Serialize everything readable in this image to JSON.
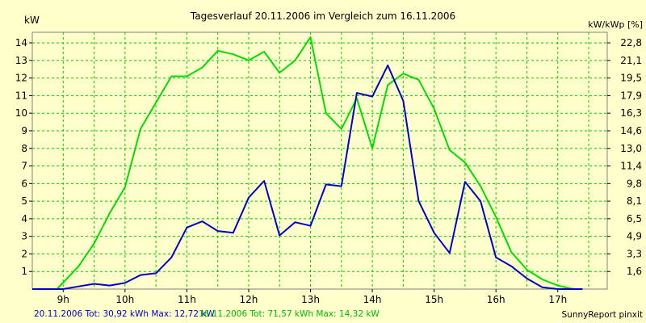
{
  "chart_data": {
    "type": "line",
    "title": "Tagesverlauf 20.11.2006 im Vergleich zum 16.11.2006",
    "ylabel_left": "kW",
    "ylabel_right": "kW/kWp [%]",
    "ylim": [
      0,
      14.6
    ],
    "xlim_hours": [
      8.5,
      17.8
    ],
    "yticks_left": [
      1,
      2,
      3,
      4,
      5,
      6,
      7,
      8,
      9,
      10,
      11,
      12,
      13,
      14
    ],
    "yticks_right": [
      "1,6",
      "3,3",
      "4,9",
      "6,5",
      "8,1",
      "9,8",
      "11,4",
      "13,0",
      "14,6",
      "16,3",
      "17,9",
      "19,5",
      "21,1",
      "22,8"
    ],
    "xticks": [
      {
        "label": "9h",
        "hour": 9
      },
      {
        "label": "10h",
        "hour": 10
      },
      {
        "label": "11h",
        "hour": 11
      },
      {
        "label": "12h",
        "hour": 12
      },
      {
        "label": "13h",
        "hour": 13
      },
      {
        "label": "14h",
        "hour": 14
      },
      {
        "label": "15h",
        "hour": 15
      },
      {
        "label": "16h",
        "hour": 16
      },
      {
        "label": "17h",
        "hour": 17
      }
    ],
    "grid": true,
    "series": [
      {
        "name": "20.11.2006",
        "color": "#0000cc",
        "summary": "20.11.2006 Tot: 30,92 kWh Max: 12,72 kW",
        "x": [
          8.5,
          9.0,
          9.25,
          9.5,
          9.75,
          10.0,
          10.25,
          10.5,
          10.75,
          11.0,
          11.25,
          11.5,
          11.75,
          12.0,
          12.25,
          12.5,
          12.75,
          13.0,
          13.25,
          13.5,
          13.75,
          14.0,
          14.25,
          14.5,
          14.75,
          15.0,
          15.25,
          15.5,
          15.75,
          16.0,
          16.25,
          16.5,
          16.75,
          17.0,
          17.4
        ],
        "y": [
          0.0,
          0.0,
          0.15,
          0.3,
          0.2,
          0.35,
          0.8,
          0.9,
          1.8,
          3.5,
          3.85,
          3.3,
          3.2,
          5.2,
          6.15,
          3.05,
          3.8,
          3.6,
          5.95,
          5.85,
          11.15,
          10.95,
          12.72,
          10.7,
          5.0,
          3.2,
          2.05,
          6.1,
          5.0,
          1.8,
          1.3,
          0.6,
          0.1,
          0.0,
          0.0
        ]
      },
      {
        "name": "16.11.2006",
        "color": "#00dd00",
        "summary": "16.11.2006 Tot: 71,57 kWh Max: 14,32 kW",
        "x": [
          8.5,
          8.9,
          9.25,
          9.5,
          9.75,
          10.0,
          10.25,
          10.5,
          10.75,
          11.0,
          11.25,
          11.5,
          11.75,
          12.0,
          12.25,
          12.5,
          12.75,
          13.0,
          13.25,
          13.5,
          13.75,
          14.0,
          14.25,
          14.5,
          14.75,
          15.0,
          15.25,
          15.5,
          15.75,
          16.0,
          16.25,
          16.5,
          16.75,
          17.0,
          17.25,
          17.4
        ],
        "y": [
          0.0,
          0.0,
          1.3,
          2.6,
          4.3,
          5.8,
          9.1,
          10.6,
          12.1,
          12.1,
          12.6,
          13.55,
          13.35,
          13.0,
          13.5,
          12.3,
          13.0,
          14.32,
          10.0,
          9.1,
          10.85,
          8.0,
          11.6,
          12.25,
          11.9,
          10.25,
          7.9,
          7.2,
          5.85,
          4.1,
          2.1,
          1.1,
          0.55,
          0.2,
          0.0,
          0.0
        ]
      }
    ]
  },
  "footer": {
    "legend_blue": "20.11.2006 Tot: 30,92 kWh Max: 12,72 kW",
    "legend_green": "16.11.2006 Tot: 71,57 kWh Max: 14,32 kW",
    "brand": "SunnyReport pinxit"
  }
}
